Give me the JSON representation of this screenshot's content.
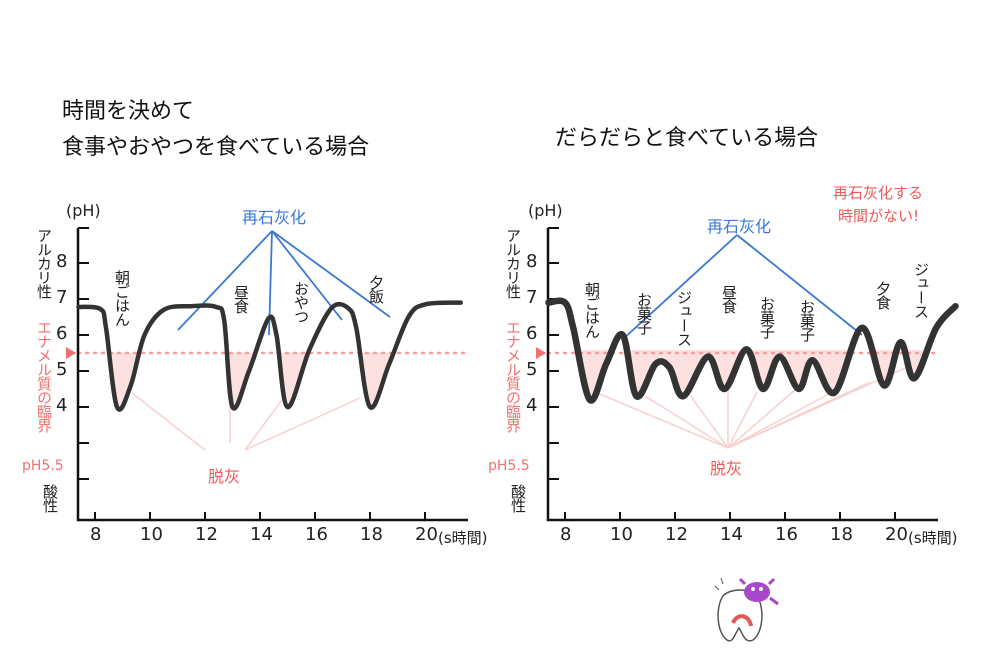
{
  "left": {
    "title_line1": "時間を決めて",
    "title_line2": "食事やおやつを食べている場合",
    "remineral_label": "再石灰化",
    "demineral_label": "脱灰",
    "meals": [
      "朝ごはん",
      "昼食",
      "おやつ",
      "夕飯"
    ]
  },
  "right": {
    "title": "だらだらと食べている場合",
    "remineral_label": "再石灰化",
    "warning_line1": "再石灰化する",
    "warning_line2": "時間がない!",
    "demineral_label": "脱灰",
    "meals": [
      "朝ごはん",
      "お菓子",
      "ジュース",
      "昼食",
      "お菓子",
      "お菓子",
      "夕食",
      "ジュース"
    ]
  },
  "axis": {
    "y_unit": "(pH)",
    "alkaline": "アルカリ性",
    "acidic": "酸性",
    "critical_label": "エナメル質の臨界",
    "critical_value": "pH5.5",
    "y_ticks": [
      "8",
      "7",
      "6",
      "5",
      "4"
    ],
    "x_ticks": [
      "8",
      "10",
      "12",
      "14",
      "16",
      "18",
      "20"
    ],
    "x_unit": "(s時間)"
  },
  "colors": {
    "curve": "#333333",
    "remineral": "#3a78d4",
    "demineral": "#ee5a5a",
    "fill": "#fde0e0"
  },
  "chart_data": [
    {
      "type": "line",
      "title": "時間を決めて食事やおやつを食べている場合",
      "ylabel": "(pH)",
      "xlabel": "(s時間)",
      "threshold": 5.5,
      "x": [
        7.4,
        8.2,
        8.4,
        8.8,
        9.3,
        9.8,
        10.5,
        11.5,
        12.4,
        12.7,
        13.0,
        13.6,
        14.3,
        14.6,
        15.0,
        15.8,
        16.6,
        17.2,
        17.5,
        18.0,
        18.7,
        19.4,
        20.0,
        21.3
      ],
      "y": [
        6.78,
        6.72,
        6.2,
        4.0,
        4.6,
        6.0,
        6.7,
        6.8,
        6.78,
        6.4,
        4.0,
        5.0,
        6.45,
        6.0,
        4.0,
        5.6,
        6.75,
        6.75,
        6.2,
        4.0,
        5.2,
        6.5,
        6.85,
        6.9
      ]
    },
    {
      "type": "line",
      "title": "だらだらと食べている場合",
      "ylabel": "(pH)",
      "xlabel": "(s時間)",
      "threshold": 5.5,
      "x": [
        7.4,
        8.0,
        8.3,
        8.9,
        9.5,
        10.1,
        10.6,
        11.3,
        11.8,
        12.3,
        13.2,
        13.8,
        14.6,
        15.2,
        15.8,
        16.5,
        17.0,
        17.8,
        18.8,
        19.6,
        20.2,
        20.7,
        21.5,
        22.2
      ],
      "y": [
        6.9,
        6.9,
        6.2,
        4.2,
        5.2,
        6.0,
        4.3,
        5.2,
        5.1,
        4.3,
        5.4,
        4.5,
        5.6,
        4.5,
        5.4,
        4.5,
        5.3,
        4.4,
        6.2,
        4.6,
        5.8,
        4.8,
        6.2,
        6.8
      ]
    }
  ]
}
